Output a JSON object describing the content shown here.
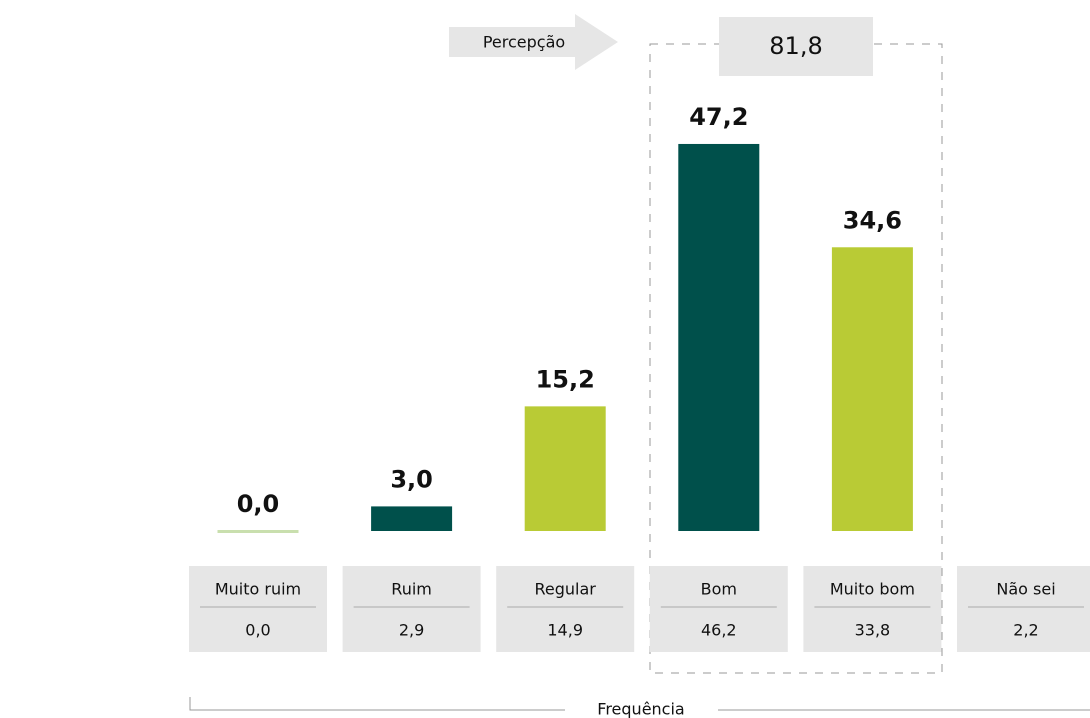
{
  "chart_data": {
    "type": "bar",
    "categories": [
      "Muito ruim",
      "Ruim",
      "Regular",
      "Bom",
      "Muito bom",
      "Não sei"
    ],
    "values": [
      0,
      3.0,
      15.2,
      47.2,
      34.6,
      null
    ],
    "value_labels": [
      "0,0",
      "3,0",
      "15,2",
      "47,2",
      "34,6",
      null
    ],
    "colors": [
      "#c9dfae",
      "#00504b",
      "#b9cb35",
      "#00504b",
      "#b9cb35",
      null
    ],
    "ylim": [
      0,
      50
    ],
    "frequency": {
      "label": "Frequência",
      "values": [
        0,
        2.9,
        14.9,
        46.2,
        33.8,
        2.2
      ],
      "value_labels": [
        "0,0",
        "2,9",
        "14,9",
        "46,2",
        "33,8",
        "2,2"
      ]
    },
    "perception": {
      "label": "Percepção",
      "value": 81.8,
      "value_label": "81,8"
    }
  }
}
